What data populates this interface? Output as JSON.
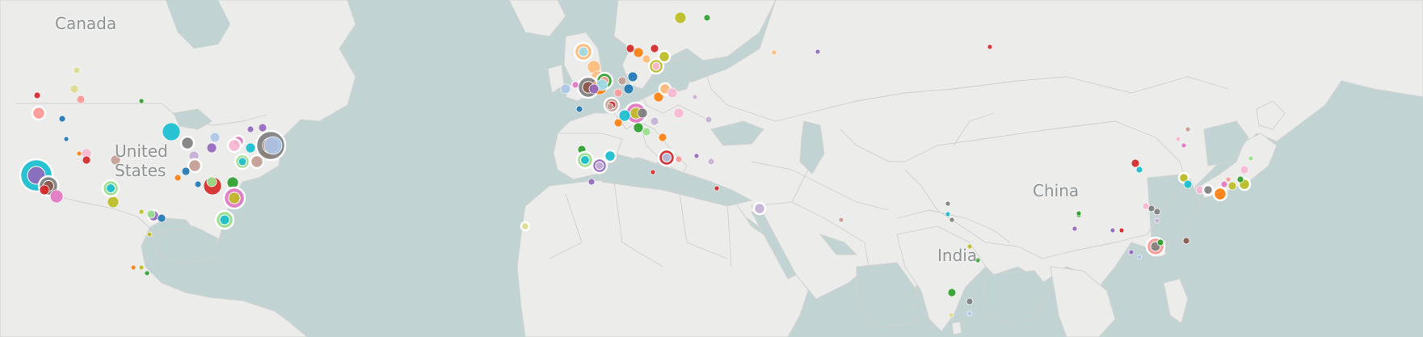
{
  "map": {
    "labels": {
      "canada": "Canada",
      "united_states": "United\nStates",
      "china": "China",
      "india": "India"
    },
    "colors": {
      "water": "#c1d3d2",
      "land": "#ececeb",
      "border": "#c9c9c9",
      "label_text": "#8f9494"
    },
    "marker_palette": [
      "#17becf",
      "#7f7f7f",
      "#e377c2",
      "#d62728",
      "#1f77b4",
      "#ff7f0e",
      "#2ca02c",
      "#9467bd",
      "#8c564b",
      "#bcbd22",
      "#aec7e8",
      "#ffbb78",
      "#98df8a",
      "#ff9896",
      "#c5b0d5",
      "#c49c94",
      "#f7b6d2",
      "#dbdb8d",
      "#9edae5"
    ]
  }
}
